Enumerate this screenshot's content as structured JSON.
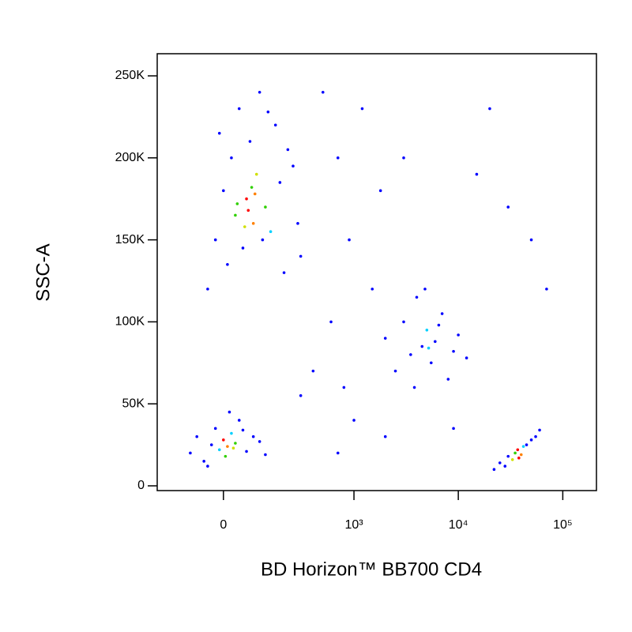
{
  "chart_data": {
    "type": "scatter",
    "xlabel": "BD Horizon™ BB700 CD4",
    "ylabel": "SSC-A",
    "xscale": "biexponential",
    "xlim": [
      -230,
      210000
    ],
    "ylim": [
      -2900,
      263500
    ],
    "xticks": [
      0,
      {
        "value": 1000,
        "label": "10³"
      },
      {
        "value": 10000,
        "label": "10⁴"
      },
      {
        "value": 100000,
        "label": "10⁵"
      }
    ],
    "yticks": [
      0,
      {
        "value": 50000,
        "label": "50K"
      },
      {
        "value": 100000,
        "label": "100K"
      },
      {
        "value": 150000,
        "label": "150K"
      },
      {
        "value": 200000,
        "label": "200K"
      },
      {
        "value": 250000,
        "label": "250K"
      }
    ],
    "x": [
      -40,
      -20,
      0,
      10,
      20,
      30,
      40,
      50,
      60,
      70,
      80,
      90,
      100,
      120,
      140,
      160,
      180,
      200,
      220,
      250,
      280,
      300,
      -10,
      35,
      65,
      85,
      110,
      130,
      55,
      75,
      -90,
      -70,
      -50,
      -30,
      -20,
      -10,
      0,
      5,
      10,
      20,
      30,
      40,
      60,
      80,
      100,
      120,
      -40,
      15,
      25,
      50,
      2000,
      2500,
      3000,
      3500,
      4000,
      4500,
      5000,
      5500,
      6000,
      7000,
      8000,
      9000,
      10000,
      12000,
      3800,
      4800,
      5200,
      6500,
      22000,
      25000,
      28000,
      30000,
      33000,
      35000,
      37000,
      40000,
      42000,
      45000,
      50000,
      55000,
      60000,
      38000,
      500,
      700,
      900,
      1200,
      1500,
      800,
      2000,
      3000,
      20000,
      30000,
      600,
      1000,
      400,
      15000,
      50000,
      300,
      700,
      1800,
      9000,
      70000
    ],
    "y": [
      120000,
      150000,
      180000,
      135000,
      200000,
      165000,
      230000,
      145000,
      175000,
      210000,
      160000,
      190000,
      240000,
      170000,
      155000,
      220000,
      185000,
      130000,
      205000,
      195000,
      160000,
      140000,
      215000,
      172000,
      168000,
      178000,
      150000,
      228000,
      158000,
      182000,
      20000,
      30000,
      15000,
      25000,
      35000,
      22000,
      28000,
      18000,
      24000,
      32000,
      26000,
      40000,
      21000,
      30000,
      27000,
      19000,
      12000,
      45000,
      23000,
      34000,
      90000,
      70000,
      100000,
      80000,
      115000,
      85000,
      95000,
      75000,
      88000,
      105000,
      65000,
      82000,
      92000,
      78000,
      60000,
      120000,
      84000,
      98000,
      10000,
      14000,
      12000,
      18000,
      16000,
      20000,
      22000,
      19000,
      24000,
      25000,
      28000,
      30000,
      34000,
      17000,
      240000,
      200000,
      150000,
      230000,
      120000,
      60000,
      30000,
      200000,
      230000,
      170000,
      100000,
      40000,
      70000,
      190000,
      150000,
      55000,
      20000,
      180000,
      35000,
      120000
    ],
    "colors": [
      "#0000ff",
      "#0000ff",
      "#0000ff",
      "#0000ff",
      "#0000ff",
      "#30d000",
      "#0000ff",
      "#0000ff",
      "#ff0000",
      "#0000ff",
      "#ff8000",
      "#d0e000",
      "#0000ff",
      "#30d000",
      "#00d0ff",
      "#0000ff",
      "#0000ff",
      "#0000ff",
      "#0000ff",
      "#0000ff",
      "#0000ff",
      "#0000ff",
      "#0000ff",
      "#30d000",
      "#ff0000",
      "#ff8000",
      "#0000ff",
      "#0000ff",
      "#d0e000",
      "#30d000",
      "#0000ff",
      "#0000ff",
      "#0000ff",
      "#0000ff",
      "#0000ff",
      "#00d0ff",
      "#ff0000",
      "#30d000",
      "#ff8000",
      "#00d0ff",
      "#30d000",
      "#0000ff",
      "#0000ff",
      "#0000ff",
      "#0000ff",
      "#0000ff",
      "#0000ff",
      "#0000ff",
      "#d0e000",
      "#0000ff",
      "#0000ff",
      "#0000ff",
      "#0000ff",
      "#0000ff",
      "#0000ff",
      "#0000ff",
      "#00d0ff",
      "#0000ff",
      "#0000ff",
      "#0000ff",
      "#0000ff",
      "#0000ff",
      "#0000ff",
      "#0000ff",
      "#0000ff",
      "#0000ff",
      "#00d0ff",
      "#0000ff",
      "#0000ff",
      "#0000ff",
      "#0000ff",
      "#0000ff",
      "#d0e000",
      "#30d000",
      "#ff0000",
      "#ff8000",
      "#00d0ff",
      "#0000ff",
      "#0000ff",
      "#0000ff",
      "#0000ff",
      "#ff0000",
      "#0000ff",
      "#0000ff",
      "#0000ff",
      "#0000ff",
      "#0000ff",
      "#0000ff",
      "#0000ff",
      "#0000ff",
      "#0000ff",
      "#0000ff",
      "#0000ff",
      "#0000ff",
      "#0000ff",
      "#0000ff",
      "#0000ff",
      "#0000ff",
      "#0000ff",
      "#0000ff",
      "#0000ff",
      "#0000ff"
    ]
  }
}
